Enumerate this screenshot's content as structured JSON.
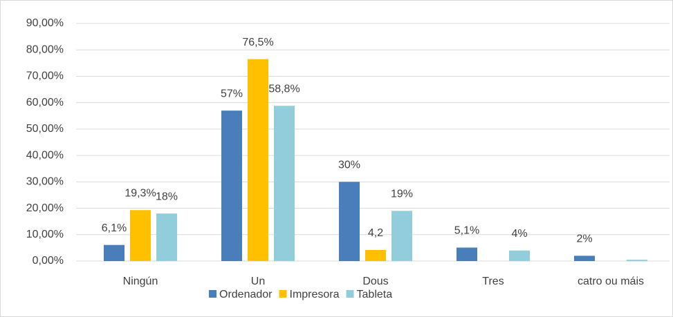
{
  "chart_data": {
    "type": "bar",
    "categories": [
      "Ningún",
      "Un",
      "Dous",
      "Tres",
      "catro ou máis"
    ],
    "series": [
      {
        "name": "Ordenador",
        "color": "#4a7ebb",
        "values": [
          6.1,
          57,
          30,
          5.1,
          2
        ],
        "value_labels": [
          "6,1%",
          "57%",
          "30%",
          "5,1%",
          "2%"
        ]
      },
      {
        "name": "Impresora",
        "color": "#ffc000",
        "values": [
          19.3,
          76.5,
          4.2,
          null,
          null
        ],
        "value_labels": [
          "19,3%",
          "76,5%",
          "4,2",
          null,
          null
        ]
      },
      {
        "name": "Tableta",
        "color": "#92cddc",
        "values": [
          18,
          58.8,
          19,
          4,
          0.5
        ],
        "value_labels": [
          "18%",
          "58,8%",
          "19%",
          "4%",
          null
        ]
      }
    ],
    "ylim": [
      0,
      90
    ],
    "yticks": [
      {
        "value": 0,
        "label": "0,00%"
      },
      {
        "value": 10,
        "label": "10,00%"
      },
      {
        "value": 20,
        "label": "20,00%"
      },
      {
        "value": 30,
        "label": "30,00%"
      },
      {
        "value": 40,
        "label": "40,00%"
      },
      {
        "value": 50,
        "label": "50,00%"
      },
      {
        "value": 60,
        "label": "60,00%"
      },
      {
        "value": 70,
        "label": "70,00%"
      },
      {
        "value": 80,
        "label": "80,00%"
      },
      {
        "value": 90,
        "label": "90,00%"
      }
    ],
    "grid": true,
    "legend": "bottom"
  }
}
